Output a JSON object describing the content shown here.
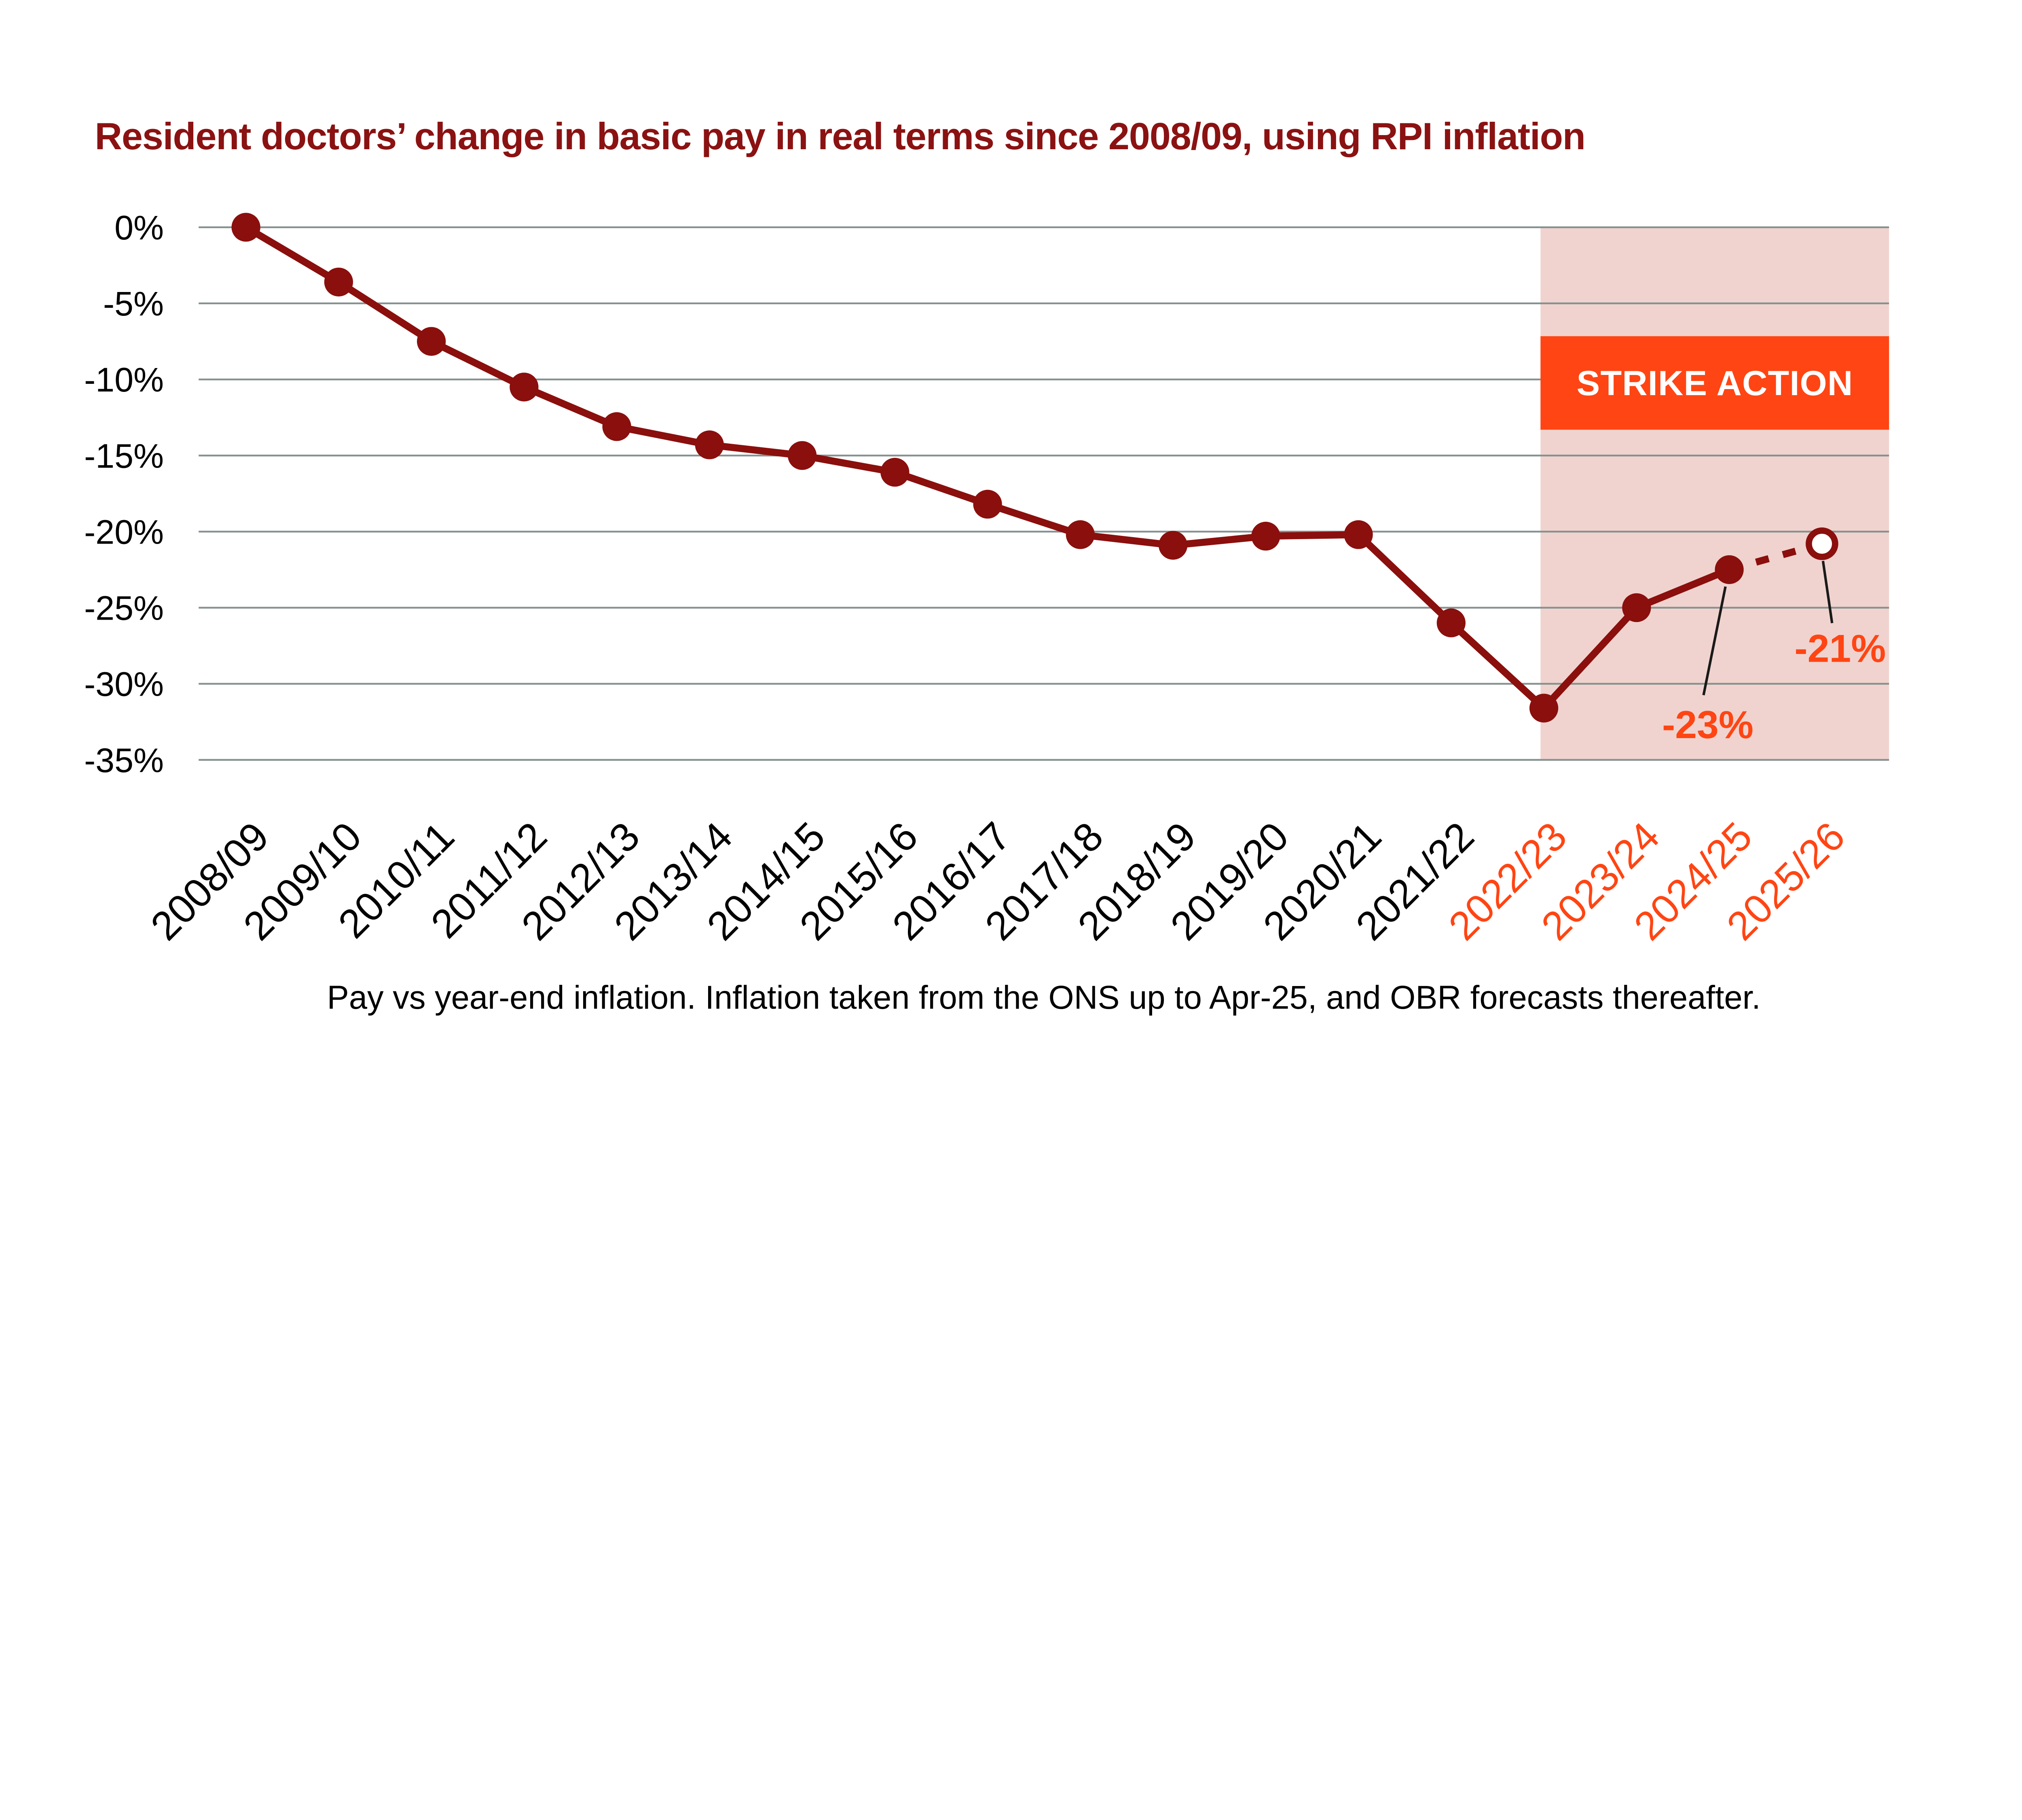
{
  "colors": {
    "title_maroon": "#8b1212",
    "line_maroon": "#8a0f0d",
    "accent_orange": "#ff4513",
    "shading_pink": "#f0d3cf",
    "gridline_gray": "#84918f",
    "axis_text_black": "#000000",
    "callout_black": "#1a1a1a",
    "background_white": "#ffffff",
    "banner_text_white": "#ffffff"
  },
  "strike_banner": {
    "label": "STRIKE ACTION"
  },
  "y_axis": {
    "tick_labels": [
      "0%",
      "-5%",
      "-10%",
      "-15%",
      "-20%",
      "-25%",
      "-30%",
      "-35%"
    ]
  },
  "x_axis": {
    "highlight_start_index": 14
  },
  "chart_data": {
    "type": "line",
    "title": "Resident doctors’ change in basic pay in real terms since 2008/09, using RPI inflation",
    "footnote": "Pay vs year-end inflation. Inflation taken from the ONS up to Apr-25, and OBR forecasts thereafter.",
    "categories": [
      "2008/09",
      "2009/10",
      "2010/11",
      "2011/12",
      "2012/13",
      "2013/14",
      "2014/15",
      "2015/16",
      "2016/17",
      "2017/18",
      "2018/19",
      "2019/20",
      "2020/21",
      "2021/22",
      "2022/23",
      "2023/24",
      "2024/25",
      "2025/26"
    ],
    "values": [
      0,
      -3.6,
      -7.5,
      -10.5,
      -13.1,
      -14.3,
      -15.0,
      -16.1,
      -18.2,
      -20.2,
      -20.9,
      -20.3,
      -20.2,
      -26.0,
      -31.6,
      -25.0,
      -22.5,
      -20.8
    ],
    "ylim": [
      -35,
      0
    ],
    "y_tick_step": -5,
    "grid": "horizontal",
    "legend": "none",
    "forecast": {
      "dashed_from_index": 16,
      "open_marker_index": 17
    },
    "shaded_region": {
      "start_category": "2022/23",
      "end_category": "2025/26",
      "label": "STRIKE ACTION"
    },
    "annotations": [
      {
        "category": "2024/25",
        "point_index": 16,
        "label": "-23%"
      },
      {
        "category": "2025/26",
        "point_index": 17,
        "label": "-21%"
      }
    ]
  }
}
